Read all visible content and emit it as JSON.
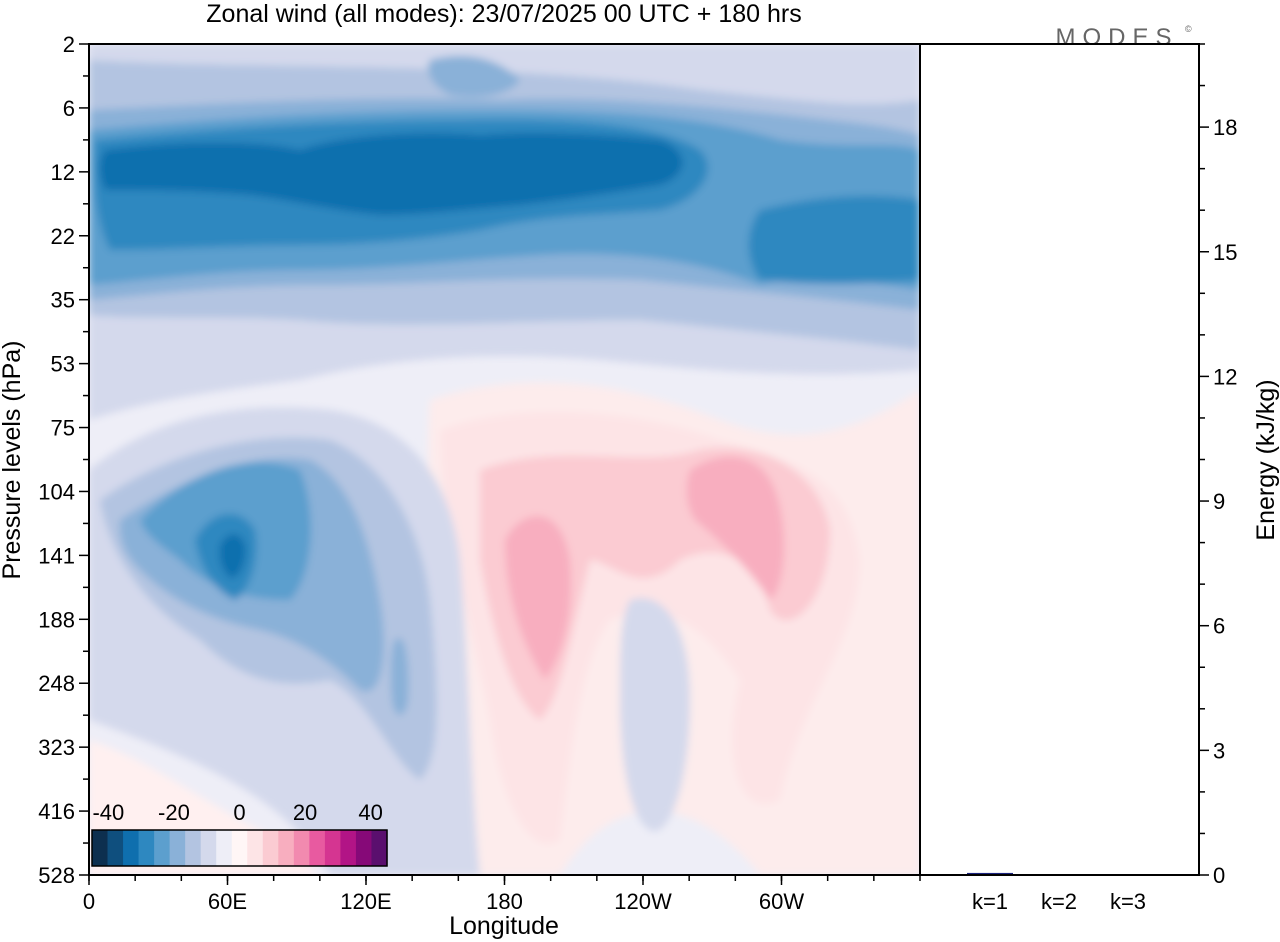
{
  "chart_data": [
    {
      "type": "heatmap",
      "title": "Zonal wind (all modes):  23/07/2025  00 UTC  + 180 hrs",
      "brand": "MODES",
      "brand_mark": "©",
      "xlabel": "Longitude",
      "ylabel": "Pressure levels (hPa)",
      "x_ticks": [
        "0",
        "60E",
        "120E",
        "180",
        "120W",
        "60W"
      ],
      "x_tick_values": [
        0,
        60,
        120,
        180,
        240,
        300
      ],
      "xlim": [
        0,
        360
      ],
      "y_ticks": [
        "2",
        "6",
        "12",
        "22",
        "35",
        "53",
        "75",
        "104",
        "141",
        "188",
        "248",
        "323",
        "416",
        "528"
      ],
      "colorbar": {
        "tick_labels": [
          "-40",
          "-20",
          "0",
          "20",
          "40"
        ],
        "tick_values": [
          -40,
          -20,
          0,
          20,
          40
        ],
        "range": [
          -45,
          45
        ],
        "colors": [
          "#0d2f4f",
          "#0f4f7e",
          "#0f6fae",
          "#2e88c0",
          "#5c9fce",
          "#8ab1d8",
          "#b3c4e1",
          "#d4d9ec",
          "#eeeef7",
          "#fff6f6",
          "#fde4e6",
          "#fbcbd2",
          "#f8aebf",
          "#f28aaf",
          "#e85aa0",
          "#d53591",
          "#b21486",
          "#860978",
          "#5a0f6e"
        ]
      },
      "fields": [
        {
          "label": "upper easterly jet core",
          "lon_range": [
            5,
            300
          ],
          "levels": "10-22 hPa",
          "approx_value": -35
        },
        {
          "label": "upper easterly band",
          "lon_range": [
            0,
            360
          ],
          "levels": "6-35 hPa",
          "approx_value": -25
        },
        {
          "label": "westerly maximum west",
          "lon_range": [
            180,
            205
          ],
          "levels": "104-248 hPa",
          "approx_value": 12
        },
        {
          "label": "westerly maximum east",
          "lon_range": [
            262,
            302
          ],
          "levels": "90-190 hPa",
          "approx_value": 10
        },
        {
          "label": "easterly core over 60E",
          "lon_range": [
            45,
            85
          ],
          "levels": "104-188 hPa",
          "approx_value": -28
        },
        {
          "label": "weak easterly near dateline",
          "lon_range": [
            225,
            245
          ],
          "levels": "188-323 hPa",
          "approx_value": -8
        }
      ]
    },
    {
      "type": "bar",
      "ylabel": "Energy (kJ/kg)",
      "categories": [
        "k=1",
        "k=2",
        "k=3"
      ],
      "values": [
        0.05,
        0.02,
        0.02
      ],
      "ylim": [
        0,
        20
      ],
      "y_ticks": [
        "0",
        "3",
        "6",
        "9",
        "12",
        "15",
        "18"
      ],
      "y_tick_values": [
        0,
        3,
        6,
        9,
        12,
        15,
        18
      ],
      "bar_color": "#1a237e"
    }
  ]
}
